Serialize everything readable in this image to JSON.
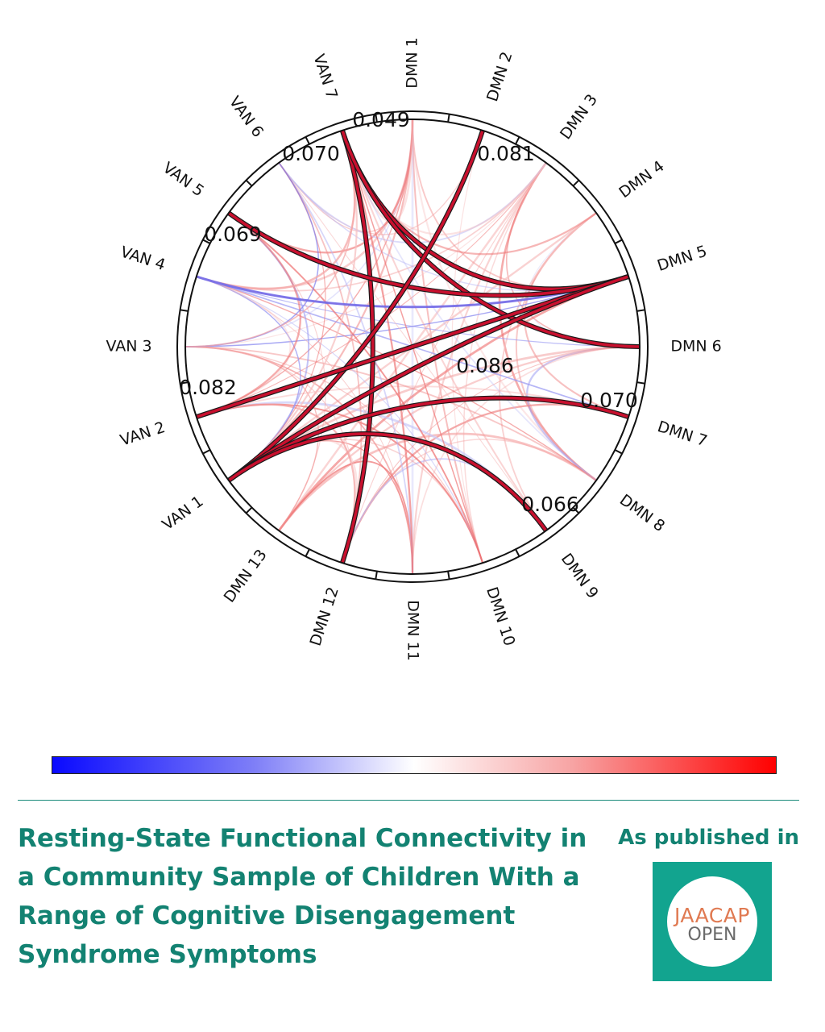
{
  "chart_data": {
    "type": "chord",
    "nodes": [
      "DMN 1",
      "DMN 2",
      "DMN 3",
      "DMN 4",
      "DMN 5",
      "DMN 6",
      "DMN 7",
      "DMN 8",
      "DMN 9",
      "DMN 10",
      "DMN 11",
      "DMN 12",
      "DMN 13",
      "VAN 1",
      "VAN 2",
      "VAN 3",
      "VAN 4",
      "VAN 5",
      "VAN 6",
      "VAN 7"
    ],
    "highlighted_edges": [
      {
        "source": "VAN 7",
        "target": "DMN 5",
        "value": null
      },
      {
        "source": "VAN 7",
        "target": "DMN 12",
        "value": null
      },
      {
        "source": "VAN 7",
        "target": "DMN 6",
        "value": null
      },
      {
        "source": "VAN 5",
        "target": "DMN 5",
        "value": null
      },
      {
        "source": "DMN 2",
        "target": "VAN 1",
        "value": null
      },
      {
        "source": "VAN 2",
        "target": "DMN 5",
        "value": null
      },
      {
        "source": "VAN 1",
        "target": "DMN 5",
        "value": null
      },
      {
        "source": "VAN 1",
        "target": "DMN 7",
        "value": null
      },
      {
        "source": "VAN 1",
        "target": "DMN 9",
        "value": null
      }
    ],
    "annotations": [
      "0.049",
      "0.070",
      "0.081",
      "0.069",
      "0.082",
      "0.086",
      "0.070",
      "0.066"
    ],
    "colorbar": {
      "low_color": "#0000ff",
      "mid_color": "#ffffff",
      "high_color": "#ff0000"
    }
  },
  "title": "Resting-State Functional Connectivity in a Community Sample of Children With a Range of Cognitive Disengagement Syndrome Symptoms",
  "publication": {
    "label": "As published in",
    "logo_top": "JAACAP",
    "logo_bottom": "OPEN"
  },
  "colors": {
    "accent": "#138272",
    "logo_bg": "#12a48f",
    "logo_orange": "#e07a52"
  }
}
